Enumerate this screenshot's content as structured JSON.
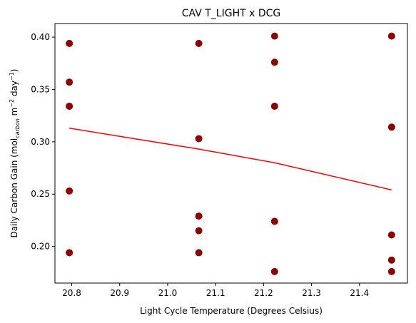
{
  "chart_data": {
    "type": "scatter",
    "title": "CAV T_LIGHT x DCG",
    "xlabel": "Light Cycle Temperature (Degrees Celsius)",
    "ylabel": {
      "prefix": "Daily Carbon Gain (mol",
      "sub": "carbon",
      "mid": " m",
      "sup1": "−2",
      "mid2": " day",
      "sup2": "−1",
      "suffix": ")"
    },
    "xlim": [
      20.765,
      21.5
    ],
    "ylim": [
      0.165,
      0.413
    ],
    "xticks": [
      20.8,
      20.9,
      21.0,
      21.1,
      21.2,
      21.3,
      21.4
    ],
    "xtick_labels": [
      "20.8",
      "20.9",
      "21.0",
      "21.1",
      "21.2",
      "21.3",
      "21.4"
    ],
    "yticks": [
      0.2,
      0.25,
      0.3,
      0.35,
      0.4
    ],
    "ytick_labels": [
      "0.20",
      "0.25",
      "0.30",
      "0.35",
      "0.40"
    ],
    "grid": false,
    "series": [
      {
        "type": "scatter",
        "color": "#8b0000",
        "points": [
          [
            20.795,
            0.394
          ],
          [
            20.795,
            0.357
          ],
          [
            20.795,
            0.334
          ],
          [
            20.795,
            0.253
          ],
          [
            20.795,
            0.194
          ],
          [
            21.065,
            0.394
          ],
          [
            21.065,
            0.303
          ],
          [
            21.065,
            0.229
          ],
          [
            21.065,
            0.215
          ],
          [
            21.065,
            0.194
          ],
          [
            21.223,
            0.401
          ],
          [
            21.223,
            0.376
          ],
          [
            21.223,
            0.334
          ],
          [
            21.223,
            0.224
          ],
          [
            21.223,
            0.176
          ],
          [
            21.467,
            0.401
          ],
          [
            21.467,
            0.314
          ],
          [
            21.467,
            0.211
          ],
          [
            21.467,
            0.187
          ],
          [
            21.467,
            0.176
          ]
        ]
      },
      {
        "type": "line",
        "color": "#ff0000",
        "points": [
          [
            20.795,
            0.313
          ],
          [
            21.065,
            0.293
          ],
          [
            21.223,
            0.28
          ],
          [
            21.467,
            0.254
          ]
        ]
      }
    ]
  }
}
